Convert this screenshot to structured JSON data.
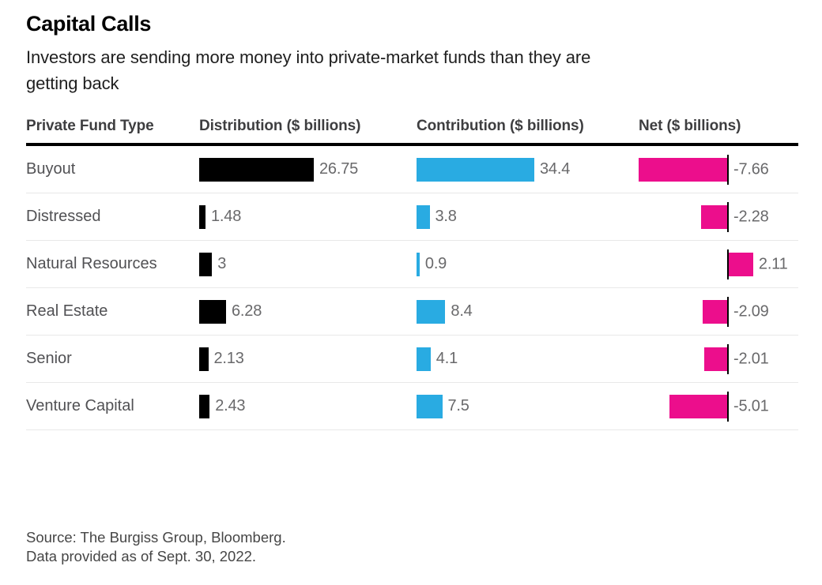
{
  "title": "Capital Calls",
  "subtitle": {
    "line1": "Investors are sending more money into private-market funds than they are",
    "line2": "getting back"
  },
  "columns": [
    "Private Fund Type",
    "Distribution ($ billions)",
    "Contribution ($ billions)",
    "Net ($ billions)"
  ],
  "rows": [
    {
      "label": "Buyout",
      "distribution": "26.75",
      "contribution": "34.4",
      "net": "-7.66"
    },
    {
      "label": "Distressed",
      "distribution": "1.48",
      "contribution": "3.8",
      "net": "-2.28"
    },
    {
      "label": "Natural Resources",
      "distribution": "3",
      "contribution": "0.9",
      "net": "2.11"
    },
    {
      "label": "Real Estate",
      "distribution": "6.28",
      "contribution": "8.4",
      "net": "-2.09"
    },
    {
      "label": "Senior",
      "distribution": "2.13",
      "contribution": "4.1",
      "net": "-2.01"
    },
    {
      "label": "Venture Capital",
      "distribution": "2.43",
      "contribution": "7.5",
      "net": "-5.01"
    }
  ],
  "colors": {
    "distribution_bar": "#000000",
    "contribution_bar": "#29abe2",
    "net_bar": "#ec0e8c",
    "header_rule": "#000000",
    "row_separator": "#e8e8e8"
  },
  "chart_data": {
    "type": "bar",
    "title": "Capital Calls",
    "subtitle": "Investors are sending more money into private-market funds than they are getting back",
    "categories": [
      "Buyout",
      "Distressed",
      "Natural Resources",
      "Real Estate",
      "Senior",
      "Venture Capital"
    ],
    "series": [
      {
        "name": "Distribution ($ billions)",
        "color": "#000000",
        "values": [
          26.75,
          1.48,
          3,
          6.28,
          2.13,
          2.43
        ]
      },
      {
        "name": "Contribution ($ billions)",
        "color": "#29abe2",
        "values": [
          34.4,
          3.8,
          0.9,
          8.4,
          4.1,
          7.5
        ]
      },
      {
        "name": "Net ($ billions)",
        "color": "#ec0e8c",
        "values": [
          -7.66,
          -2.28,
          2.11,
          -2.09,
          -2.01,
          -5.01
        ]
      }
    ],
    "orientation": "horizontal",
    "value_labels_shown": true,
    "net_axis_zero_line": true,
    "grid": "row-separators-only",
    "legend": "none"
  },
  "source": {
    "line1": "Source: The Burgiss Group, Bloomberg.",
    "line2": "Data provided as of Sept. 30, 2022."
  }
}
